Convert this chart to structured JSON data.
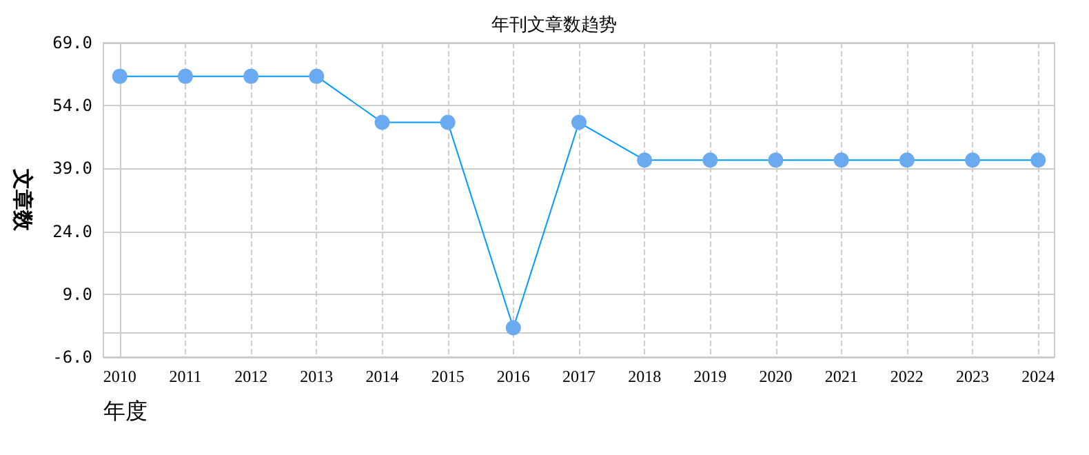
{
  "chart_data": {
    "type": "line",
    "title": "年刊文章数趋势",
    "xlabel": "年度",
    "ylabel": "文章数",
    "categories": [
      "2010",
      "2011",
      "2012",
      "2013",
      "2014",
      "2015",
      "2016",
      "2017",
      "2018",
      "2019",
      "2020",
      "2021",
      "2022",
      "2023",
      "2024"
    ],
    "series": [
      {
        "color": "#0099ff",
        "values": [
          61,
          61,
          61,
          61,
          50,
          50,
          1,
          50,
          41,
          41,
          41,
          41,
          41,
          41,
          41
        ]
      }
    ],
    "ylim": [
      -6,
      69
    ],
    "yticks": [
      {
        "value": -6,
        "label": "-6.0"
      },
      {
        "value": 9,
        "label": "9.0"
      },
      {
        "value": 24,
        "label": "24.0"
      },
      {
        "value": 39,
        "label": "39.0"
      },
      {
        "value": 54,
        "label": "54.0"
      },
      {
        "value": 69,
        "label": "69.0"
      }
    ],
    "grid": true,
    "marker": "circle",
    "line_style": "solid"
  }
}
